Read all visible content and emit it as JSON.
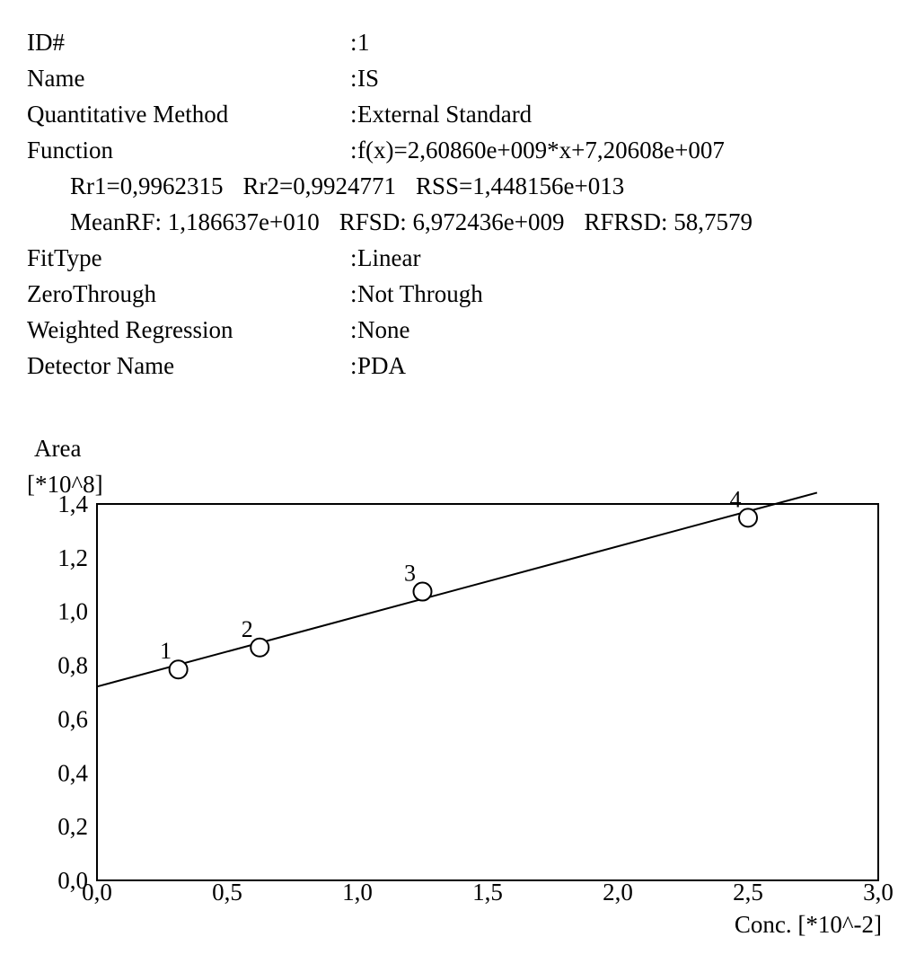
{
  "info": [
    {
      "label": "ID#",
      "value": "1"
    },
    {
      "label": "Name",
      "value": "IS"
    },
    {
      "label": "Quantitative Method",
      "value": "External Standard"
    },
    {
      "label": "Function",
      "value": "f(x)=2,60860e+009*x+7,20608e+007"
    },
    {
      "label": "FitType",
      "value": "Linear"
    },
    {
      "label": "ZeroThrough",
      "value": "Not Through"
    },
    {
      "label": "Weighted Regression",
      "value": "None"
    },
    {
      "label": "Detector Name",
      "value": "PDA"
    }
  ],
  "stats_line1": [
    "Rr1=0,9962315",
    "Rr2=0,9924771",
    "RSS=1,448156e+013"
  ],
  "stats_line2": [
    "MeanRF: 1,186637e+010",
    "RFSD: 6,972436e+009",
    "RFRSD: 58,7579"
  ],
  "chart_data": {
    "type": "scatter",
    "ylabel": "Area",
    "ylabel_unit": "[*10^8]",
    "xlabel": "Conc. [*10^-2]",
    "xlim": [
      0,
      3
    ],
    "ylim": [
      0,
      1.4
    ],
    "x_ticks": [
      "0,0",
      "0,5",
      "1,0",
      "1,5",
      "2,0",
      "2,5",
      "3,0"
    ],
    "y_ticks": [
      "0,0",
      "0,2",
      "0,4",
      "0,6",
      "0,8",
      "1,0",
      "1,2",
      "1,4"
    ],
    "points": [
      {
        "label": "1",
        "x": 0.3125,
        "y": 0.7844
      },
      {
        "label": "2",
        "x": 0.625,
        "y": 0.8662
      },
      {
        "label": "3",
        "x": 1.25,
        "y": 1.0741
      },
      {
        "label": "4",
        "x": 2.5,
        "y": 1.3486
      }
    ],
    "fit_line": {
      "slope": 0.26086,
      "intercept": 0.720608,
      "x_start": 0,
      "x_end": 2.765
    },
    "grid": false
  }
}
